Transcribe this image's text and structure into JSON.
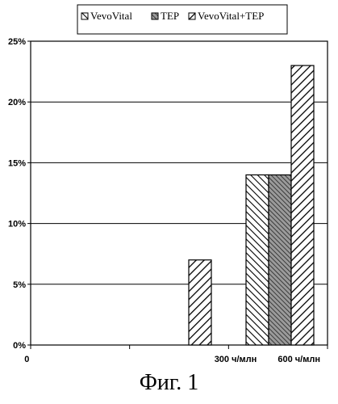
{
  "chart_data": {
    "type": "bar",
    "categories": [
      "0",
      "300 ч/млн",
      "600 ч/млн"
    ],
    "series": [
      {
        "name": "VevoVital",
        "values": [
          0,
          0,
          14
        ],
        "pattern": "hatch-right"
      },
      {
        "name": "TEP",
        "values": [
          0,
          0,
          14
        ],
        "pattern": "hatch-dense"
      },
      {
        "name": "VevoVital+TEP",
        "values": [
          0,
          7,
          23
        ],
        "pattern": "hatch-left"
      }
    ],
    "ylim": [
      0,
      25
    ],
    "yticks": [
      0,
      5,
      10,
      15,
      20,
      25
    ],
    "ytick_labels": [
      "0%",
      "5%",
      "10%",
      "15%",
      "20%",
      "25%"
    ],
    "legend_position": "top",
    "grid": true
  },
  "caption": "Фиг. 1",
  "colors": {
    "ink": "#000000",
    "background": "#ffffff"
  }
}
